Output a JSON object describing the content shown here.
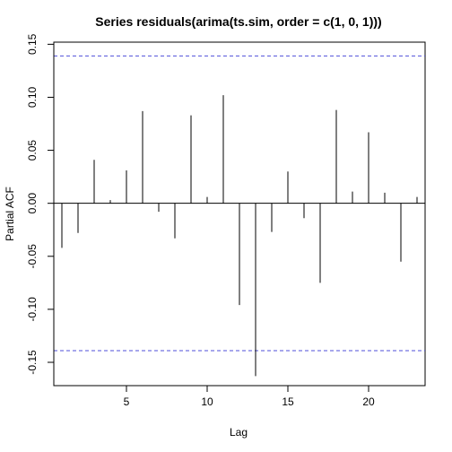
{
  "chart_data": {
    "type": "bar",
    "title": "Series  residuals(arima(ts.sim, order = c(1, 0, 1)))",
    "xlabel": "Lag",
    "ylabel": "Partial ACF",
    "xlim": [
      0.5,
      23.5
    ],
    "ylim": [
      -0.172,
      0.152
    ],
    "x_ticks": [
      5,
      10,
      15,
      20
    ],
    "x_tick_labels": [
      "5",
      "10",
      "15",
      "20"
    ],
    "y_ticks": [
      -0.15,
      -0.1,
      -0.05,
      0.0,
      0.05,
      0.1,
      0.15
    ],
    "y_tick_labels": [
      "-0.15",
      "-0.10",
      "-0.05",
      "0.00",
      "0.05",
      "0.10",
      "0.15"
    ],
    "confidence_band": 0.139,
    "confidence_color": "#4f4fd9",
    "grid": false,
    "x": [
      1,
      2,
      3,
      4,
      5,
      6,
      7,
      8,
      9,
      10,
      11,
      12,
      13,
      14,
      15,
      16,
      17,
      18,
      19,
      20,
      21,
      22,
      23
    ],
    "values": [
      -0.042,
      -0.028,
      0.041,
      0.003,
      0.031,
      0.087,
      -0.008,
      -0.033,
      0.083,
      0.006,
      0.102,
      -0.096,
      -0.163,
      -0.027,
      0.03,
      -0.014,
      -0.075,
      0.088,
      0.011,
      0.067,
      0.01,
      -0.055,
      0.006
    ]
  }
}
